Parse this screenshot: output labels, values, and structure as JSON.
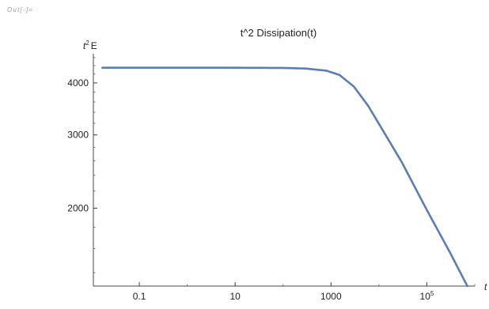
{
  "notebook": {
    "out_label": "Out[◦]="
  },
  "chart_data": {
    "type": "line",
    "title": "t^2 Dissipation(t)",
    "xlabel": "t",
    "ylabel_base": "t",
    "ylabel_sup": "2",
    "ylabel_rest": "E",
    "x_scale": "log",
    "y_scale": "log",
    "xlim": [
      0.011,
      1000000
    ],
    "ylim": [
      1300,
      4700
    ],
    "grid": false,
    "x_ticks": [
      {
        "value": 0.1,
        "base": "0.1",
        "sup": ""
      },
      {
        "value": 10,
        "base": "10",
        "sup": ""
      },
      {
        "value": 1000,
        "base": "1000",
        "sup": ""
      },
      {
        "value": 100000,
        "base": "10",
        "sup": "5"
      }
    ],
    "y_ticks": [
      {
        "value": 2000,
        "label": "2000"
      },
      {
        "value": 3000,
        "label": "3000"
      },
      {
        "value": 4000,
        "label": "4000"
      }
    ],
    "series": [
      {
        "color": "#5b7db5",
        "x": [
          0.017,
          0.1,
          1,
          10,
          100,
          300,
          800,
          1500,
          3000,
          6000,
          12000,
          30000,
          100000,
          300000,
          700000
        ],
        "y": [
          4350,
          4350,
          4350,
          4350,
          4345,
          4330,
          4280,
          4180,
          3920,
          3520,
          3080,
          2580,
          1980,
          1570,
          1300
        ]
      }
    ]
  }
}
